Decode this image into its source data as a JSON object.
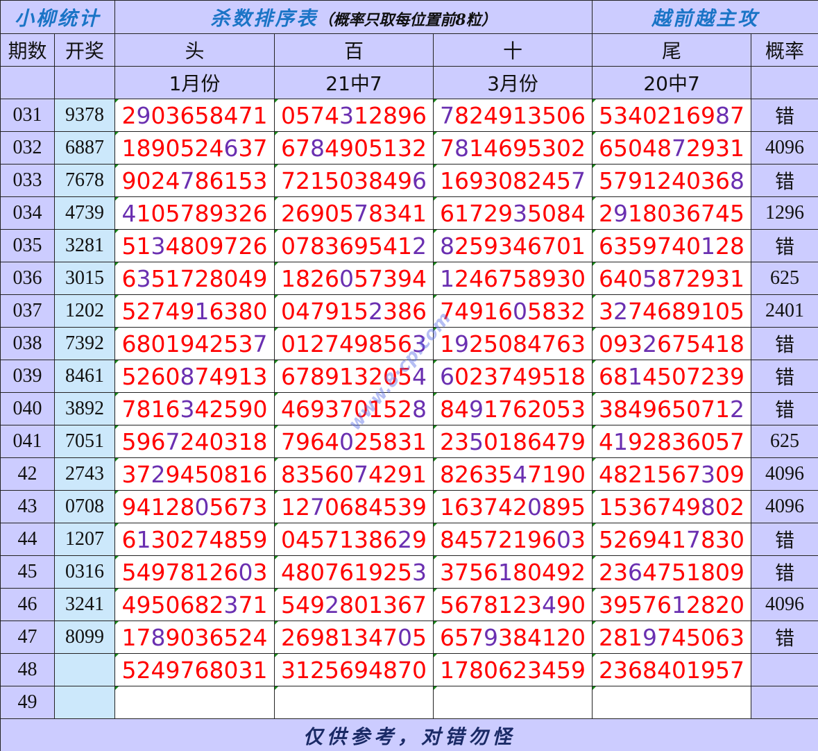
{
  "header": {
    "brand": "小柳统计",
    "title": "杀数排序表",
    "title_note": "（概率只取每位置前8粒）",
    "slogan": "越前越主攻",
    "columns": [
      "期数",
      "开奖",
      "头",
      "百",
      "十",
      "尾",
      "概率"
    ],
    "sub_labels": [
      "",
      "",
      "1月份",
      "21中7",
      "3月份",
      "20中7",
      ""
    ]
  },
  "colors": {
    "hit": "#6a2fb0",
    "miss": "#ff0000",
    "issue_bg": "#ccccff",
    "draw_bg": "#cce8fb"
  },
  "rows": [
    {
      "issue": "031",
      "draw": "9378",
      "cols": [
        "2903658471",
        "0574312896",
        "7824913506",
        "5340216987"
      ],
      "prob": "错"
    },
    {
      "issue": "032",
      "draw": "6887",
      "cols": [
        "1890524637",
        "6784905132",
        "7814695302",
        "6504872931"
      ],
      "prob": "4096"
    },
    {
      "issue": "033",
      "draw": "7678",
      "cols": [
        "9024786153",
        "7215038496",
        "1693082457",
        "5791240368"
      ],
      "prob": "错"
    },
    {
      "issue": "034",
      "draw": "4739",
      "cols": [
        "4105789326",
        "2690578341",
        "6172935084",
        "2918036745"
      ],
      "prob": "1296"
    },
    {
      "issue": "035",
      "draw": "3281",
      "cols": [
        "5134809726",
        "0783695412",
        "8259346701",
        "6359740128"
      ],
      "prob": "错"
    },
    {
      "issue": "036",
      "draw": "3015",
      "cols": [
        "6351728049",
        "1826057394",
        "1246758930",
        "6405872931"
      ],
      "prob": "625"
    },
    {
      "issue": "037",
      "draw": "1202",
      "cols": [
        "5274916380",
        "0479152386",
        "7491605832",
        "3274689105"
      ],
      "prob": "2401"
    },
    {
      "issue": "038",
      "draw": "7392",
      "cols": [
        "6801942537",
        "0127498563",
        "1925084763",
        "0932675418"
      ],
      "prob": "错"
    },
    {
      "issue": "039",
      "draw": "8461",
      "cols": [
        "5260874913",
        "6789132054",
        "6023749518",
        "6814507239"
      ],
      "prob": "错"
    },
    {
      "issue": "040",
      "draw": "3892",
      "cols": [
        "7816342590",
        "4693701528",
        "8491762053",
        "3849650712"
      ],
      "prob": "错"
    },
    {
      "issue": "041",
      "draw": "7051",
      "cols": [
        "5967240318",
        "7964025831",
        "2350186479",
        "4192836057"
      ],
      "prob": "625"
    },
    {
      "issue": "42",
      "draw": "2743",
      "cols": [
        "3729450816",
        "8356074291",
        "8263547190",
        "4821567309"
      ],
      "prob": "4096"
    },
    {
      "issue": "43",
      "draw": "0708",
      "cols": [
        "9412805673",
        "1270684539",
        "1637420895",
        "1536749802"
      ],
      "prob": "4096"
    },
    {
      "issue": "44",
      "draw": "1207",
      "cols": [
        "6130274859",
        "0457138629",
        "8457219603",
        "5269417830"
      ],
      "prob": "错"
    },
    {
      "issue": "45",
      "draw": "0316",
      "cols": [
        "5497812603",
        "4807619253",
        "3756180492",
        "2364751809"
      ],
      "prob": "错"
    },
    {
      "issue": "46",
      "draw": "3241",
      "cols": [
        "4950682371",
        "5492801367",
        "5678123490",
        "3957612820"
      ],
      "prob": "4096"
    },
    {
      "issue": "47",
      "draw": "8099",
      "cols": [
        "1789036524",
        "2698134705",
        "6579384120",
        "2819745063"
      ],
      "prob": "错"
    },
    {
      "issue": "48",
      "draw": "",
      "cols": [
        "5249768031",
        "3125694870",
        "1780623459",
        "2368401957"
      ],
      "prob": ""
    },
    {
      "issue": "49",
      "draw": "",
      "cols": [
        "",
        "",
        "",
        ""
      ],
      "prob": ""
    }
  ],
  "footer": "仅供参考，对错勿怪"
}
